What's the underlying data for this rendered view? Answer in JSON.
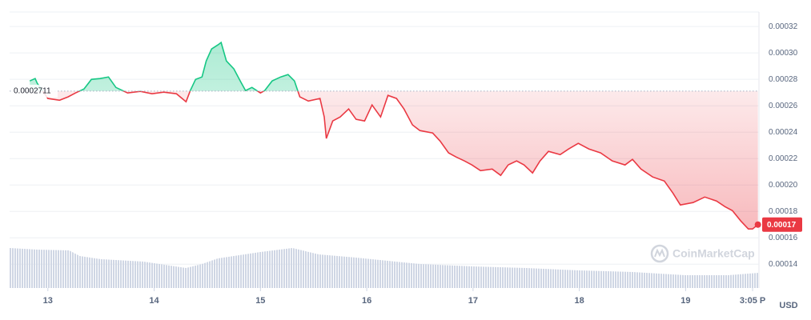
{
  "chart_data": {
    "type": "line",
    "baseline": 0.0002711,
    "current_price": 0.00017,
    "watermark": "CoinMarketCap",
    "currency": "USD",
    "up_color": "#16c784",
    "down_color": "#ea3943",
    "grid": true,
    "xlim": [
      12.64,
      19.69
    ],
    "xticks": [
      {
        "value": 13,
        "label": "13"
      },
      {
        "value": 14,
        "label": "14"
      },
      {
        "value": 15,
        "label": "15"
      },
      {
        "value": 16,
        "label": "16"
      },
      {
        "value": 17,
        "label": "17"
      },
      {
        "value": 18,
        "label": "18"
      },
      {
        "value": 19,
        "label": "19"
      },
      {
        "value": 19.63,
        "label": "3:05 P"
      }
    ],
    "ylim": [
      0.000122,
      0.000331
    ],
    "yticks": [
      0.00032,
      {
        "value": 0.0003,
        "label": "0.00030"
      },
      0.00028,
      0.00026,
      0.00024,
      0.00022,
      {
        "value": 0.0002,
        "label": "0.00020"
      },
      0.00018,
      0.00016,
      0.00014
    ],
    "x": [
      12.83,
      12.88,
      12.9,
      13.0,
      13.11,
      13.19,
      13.26,
      13.34,
      13.41,
      13.49,
      13.57,
      13.64,
      13.75,
      13.87,
      13.98,
      14.09,
      14.21,
      14.3,
      14.34,
      14.39,
      14.45,
      14.49,
      14.54,
      14.6,
      14.63,
      14.68,
      14.75,
      14.81,
      14.86,
      14.92,
      15.0,
      15.04,
      15.11,
      15.19,
      15.26,
      15.32,
      15.37,
      15.45,
      15.56,
      15.6,
      15.62,
      15.68,
      15.75,
      15.83,
      15.9,
      15.98,
      16.05,
      16.13,
      16.2,
      16.28,
      16.35,
      16.43,
      16.5,
      16.62,
      16.69,
      16.77,
      16.84,
      16.92,
      16.99,
      17.07,
      17.18,
      17.26,
      17.33,
      17.41,
      17.48,
      17.56,
      17.63,
      17.71,
      17.82,
      17.9,
      17.99,
      18.09,
      18.2,
      18.31,
      18.43,
      18.5,
      18.58,
      18.69,
      18.8,
      18.88,
      18.95,
      19.07,
      19.18,
      19.29,
      19.37,
      19.44,
      19.52,
      19.59,
      19.63,
      19.68
    ],
    "values": [
      0.0002788,
      0.0002806,
      0.000277,
      0.0002655,
      0.0002642,
      0.0002667,
      0.0002697,
      0.0002727,
      0.00028,
      0.0002806,
      0.0002818,
      0.0002739,
      0.0002697,
      0.0002709,
      0.0002691,
      0.0002703,
      0.0002691,
      0.000263,
      0.0002715,
      0.00028,
      0.0002818,
      0.0002939,
      0.000303,
      0.0003061,
      0.0003079,
      0.0002939,
      0.0002879,
      0.0002788,
      0.0002715,
      0.0002739,
      0.0002697,
      0.0002715,
      0.0002788,
      0.0002818,
      0.0002836,
      0.0002788,
      0.0002667,
      0.0002636,
      0.0002655,
      0.0002515,
      0.0002352,
      0.0002485,
      0.0002515,
      0.0002576,
      0.0002497,
      0.0002485,
      0.0002606,
      0.0002515,
      0.0002679,
      0.0002655,
      0.0002576,
      0.0002455,
      0.0002412,
      0.0002394,
      0.0002333,
      0.0002243,
      0.0002212,
      0.0002182,
      0.0002152,
      0.0002109,
      0.0002121,
      0.0002073,
      0.0002152,
      0.0002182,
      0.0002152,
      0.0002091,
      0.0002182,
      0.0002255,
      0.000223,
      0.0002273,
      0.0002315,
      0.0002273,
      0.0002243,
      0.0002182,
      0.0002152,
      0.0002194,
      0.0002121,
      0.0002061,
      0.000203,
      0.0001939,
      0.0001849,
      0.0001867,
      0.0001909,
      0.0001879,
      0.0001836,
      0.0001806,
      0.0001727,
      0.0001667,
      0.0001667,
      0.00017
    ],
    "volume": {
      "x": [
        12.64,
        12.9,
        13.2,
        13.3,
        13.5,
        13.9,
        14.3,
        14.45,
        14.6,
        15.0,
        15.3,
        15.55,
        15.9,
        16.5,
        17.0,
        17.5,
        18.0,
        18.5,
        19.0,
        19.4,
        19.69
      ],
      "values": [
        50,
        48,
        47,
        40,
        36,
        33,
        25,
        30,
        37,
        45,
        50,
        42,
        38,
        30,
        27,
        25,
        22,
        20,
        16,
        16,
        19
      ]
    }
  }
}
